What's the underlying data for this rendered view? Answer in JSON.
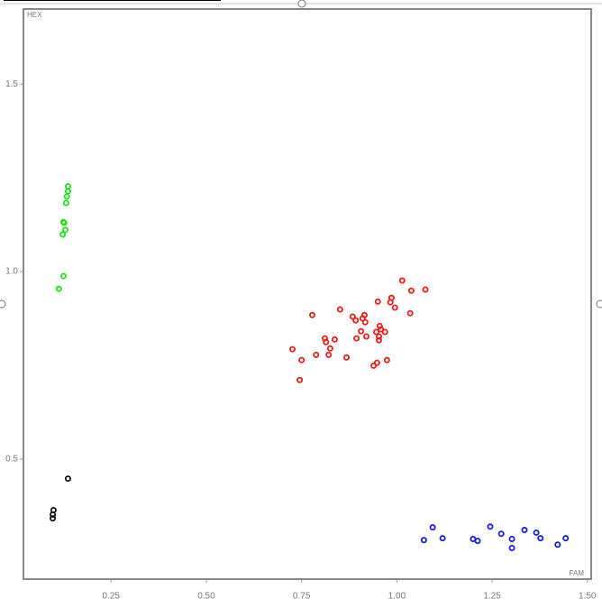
{
  "chart_data": {
    "type": "scatter",
    "x_label": "FAM",
    "y_label": "HEX",
    "xlim": [
      0.02,
      1.51
    ],
    "ylim": [
      0.18,
      1.7
    ],
    "xticks": [
      0.25,
      {
        "value": 0.5,
        "label": "0.50"
      },
      0.75,
      {
        "value": 1.0,
        "label": "1.00"
      },
      1.25,
      {
        "value": 1.5,
        "label": "1.50"
      }
    ],
    "yticks": [
      0.5,
      {
        "value": 1.0,
        "label": "1.0"
      },
      {
        "value": 1.5,
        "label": "1.5"
      }
    ],
    "series": [
      {
        "color": "#22e022",
        "x": [
          0.137,
          0.137,
          0.134,
          0.132,
          0.125,
          0.127,
          0.13,
          0.123,
          0.125,
          0.113
        ],
        "y": [
          1.227,
          1.214,
          1.2,
          1.183,
          1.132,
          1.13,
          1.111,
          1.099,
          0.988,
          0.954
        ]
      },
      {
        "color": "#111111",
        "x": [
          0.137,
          0.099,
          0.097,
          0.097
        ],
        "y": [
          0.448,
          0.364,
          0.352,
          0.342
        ]
      },
      {
        "color": "#ee1c1c",
        "x": [
          1.014,
          1.075,
          1.038,
          0.986,
          0.95,
          0.983,
          0.995,
          0.851,
          0.778,
          0.915,
          0.884,
          0.91,
          1.035,
          0.892,
          0.917,
          0.955,
          0.958,
          0.946,
          0.906,
          0.969,
          0.811,
          0.837,
          0.894,
          0.92,
          0.953,
          0.814,
          0.953,
          0.825,
          0.726,
          0.788,
          0.821,
          0.868,
          0.75,
          0.974,
          0.948,
          0.939,
          0.745
        ],
        "y": [
          0.976,
          0.952,
          0.949,
          0.93,
          0.92,
          0.918,
          0.904,
          0.899,
          0.884,
          0.884,
          0.88,
          0.875,
          0.889,
          0.87,
          0.865,
          0.855,
          0.846,
          0.839,
          0.841,
          0.839,
          0.822,
          0.819,
          0.822,
          0.827,
          0.827,
          0.812,
          0.817,
          0.795,
          0.793,
          0.778,
          0.778,
          0.771,
          0.764,
          0.764,
          0.757,
          0.749,
          0.711
        ]
      },
      {
        "color": "#1a1ae0",
        "x": [
          1.094,
          1.245,
          1.335,
          1.366,
          1.274,
          1.377,
          1.443,
          1.12,
          1.071,
          1.2,
          1.212,
          1.302,
          1.422,
          1.302
        ],
        "y": [
          0.318,
          0.32,
          0.311,
          0.304,
          0.301,
          0.289,
          0.289,
          0.289,
          0.284,
          0.287,
          0.282,
          0.287,
          0.272,
          0.263
        ]
      }
    ]
  }
}
